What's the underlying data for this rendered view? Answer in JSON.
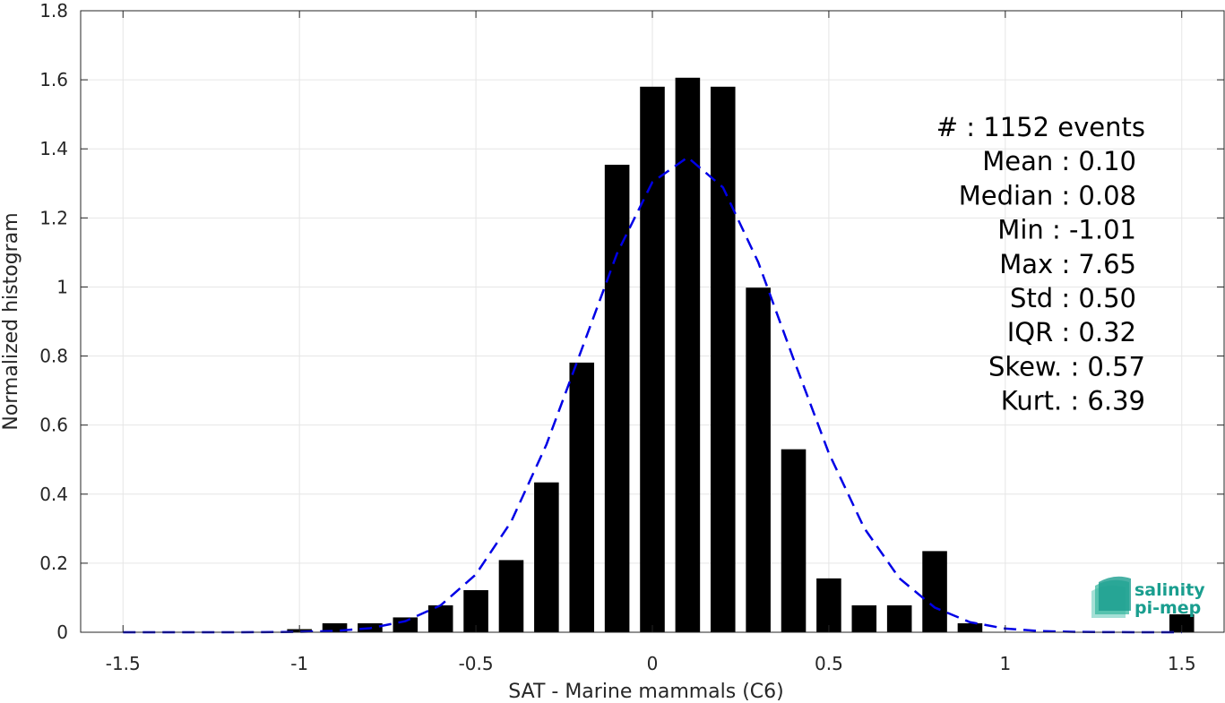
{
  "chart_data": {
    "type": "bar",
    "xlabel": "SAT - Marine mammals (C6)",
    "ylabel": "Normalized histogram",
    "xlim": [
      -1.62,
      1.62
    ],
    "ylim": [
      0,
      1.8
    ],
    "xticks": [
      -1.5,
      -1,
      -0.5,
      0,
      0.5,
      1,
      1.5
    ],
    "xtick_labels": [
      "-1.5",
      "-1",
      "-0.5",
      "0",
      "0.5",
      "1",
      "1.5"
    ],
    "yticks": [
      0,
      0.2,
      0.4,
      0.6,
      0.8,
      1,
      1.2,
      1.4,
      1.6,
      1.8
    ],
    "ytick_labels": [
      "0",
      "0.2",
      "0.4",
      "0.6",
      "0.8",
      "1",
      "1.2",
      "1.4",
      "1.6",
      "1.8"
    ],
    "grid": true,
    "bar_width": 0.07,
    "bars": [
      {
        "x": -1.0,
        "y": 0.009
      },
      {
        "x": -0.9,
        "y": 0.026
      },
      {
        "x": -0.8,
        "y": 0.026
      },
      {
        "x": -0.7,
        "y": 0.043
      },
      {
        "x": -0.6,
        "y": 0.078
      },
      {
        "x": -0.5,
        "y": 0.122
      },
      {
        "x": -0.4,
        "y": 0.209
      },
      {
        "x": -0.3,
        "y": 0.434
      },
      {
        "x": -0.2,
        "y": 0.781
      },
      {
        "x": -0.1,
        "y": 1.354
      },
      {
        "x": 0.0,
        "y": 1.58
      },
      {
        "x": 0.1,
        "y": 1.606
      },
      {
        "x": 0.2,
        "y": 1.58
      },
      {
        "x": 0.3,
        "y": 0.998
      },
      {
        "x": 0.4,
        "y": 0.53
      },
      {
        "x": 0.5,
        "y": 0.156
      },
      {
        "x": 0.6,
        "y": 0.078
      },
      {
        "x": 0.7,
        "y": 0.078
      },
      {
        "x": 0.8,
        "y": 0.235
      },
      {
        "x": 0.9,
        "y": 0.026
      },
      {
        "x": 1.5,
        "y": 0.052
      }
    ],
    "fit_curve": {
      "style": "dashed",
      "color": "#0000e6",
      "mean": 0.095,
      "std": 0.29,
      "x_range": [
        -1.5,
        1.5
      ],
      "x_step": 0.1
    },
    "bar_color": "#000000",
    "stats_box": {
      "position": "top-right",
      "lines": [
        "#  : 1152 events",
        "Mean : 0.10",
        "Median : 0.08",
        "Min : -1.01",
        "Max : 7.65",
        "Std : 0.50",
        "IQR : 0.32",
        "Skew. : 0.57",
        "Kurt. : 6.39"
      ]
    }
  },
  "logo": {
    "line1": "salinity",
    "line2": "pi-mep",
    "color": "#1a9e8f"
  }
}
